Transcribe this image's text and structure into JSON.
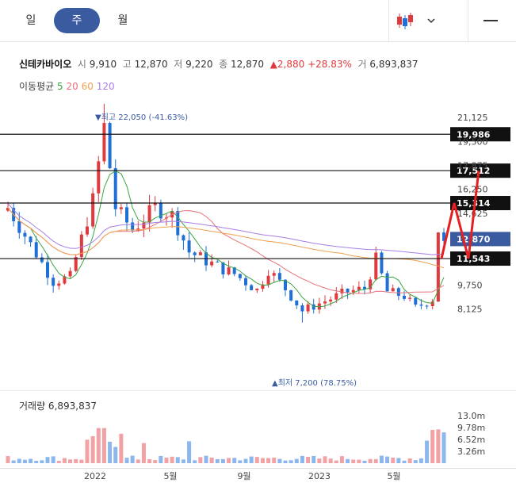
{
  "tabs": [
    {
      "label": "일"
    },
    {
      "label": "주"
    },
    {
      "label": "월"
    }
  ],
  "info": {
    "name": "신테카바이오",
    "open_k": "시",
    "open": "9,910",
    "high_k": "고",
    "high": "12,870",
    "low_k": "저",
    "low": "9,220",
    "close_k": "종",
    "close": "12,870",
    "change": "▲2,880 +28.83%",
    "volume_k": "거",
    "volume": "6,893,837"
  },
  "ma": {
    "label": "이동평균",
    "p5": "5",
    "p20": "20",
    "p60": "60",
    "p120": "120"
  },
  "annotations": {
    "max": "▼최고 22,050 (-41.63%)",
    "min": "▲최저 7,200 (78.75%)"
  },
  "volume_label": "거래량 6,893,837",
  "colors": {
    "up": "#e0393e",
    "down": "#1f6fd6",
    "ma5": "#3aa745",
    "ma20": "#e8727a",
    "ma60": "#f0a050",
    "ma120": "#a87de6",
    "accent": "#3a5ba0"
  },
  "chart_data": {
    "type": "candlestick",
    "price_ticks": [
      "21,125",
      "19,500",
      "17,875",
      "16,250",
      "14,625",
      "9,750",
      "8,125"
    ],
    "price_ylim": [
      6500,
      23000
    ],
    "volume_ticks": [
      "13.0m",
      "9.78m",
      "6.52m",
      "3.26m"
    ],
    "x_ticks": [
      "2022",
      "5월",
      "9월",
      "2023",
      "5월"
    ],
    "horizontal_levels": [
      {
        "label": "19,986",
        "value": 19986
      },
      {
        "label": "17,512",
        "value": 17512
      },
      {
        "label": "15,314",
        "value": 15314
      },
      {
        "label": "11,543",
        "value": 11543
      }
    ],
    "current_price": {
      "label": "12,870",
      "value": 12870
    },
    "red_path_values": [
      11543,
      15314,
      11543,
      17512
    ],
    "high": 22050,
    "low": 7200
  }
}
